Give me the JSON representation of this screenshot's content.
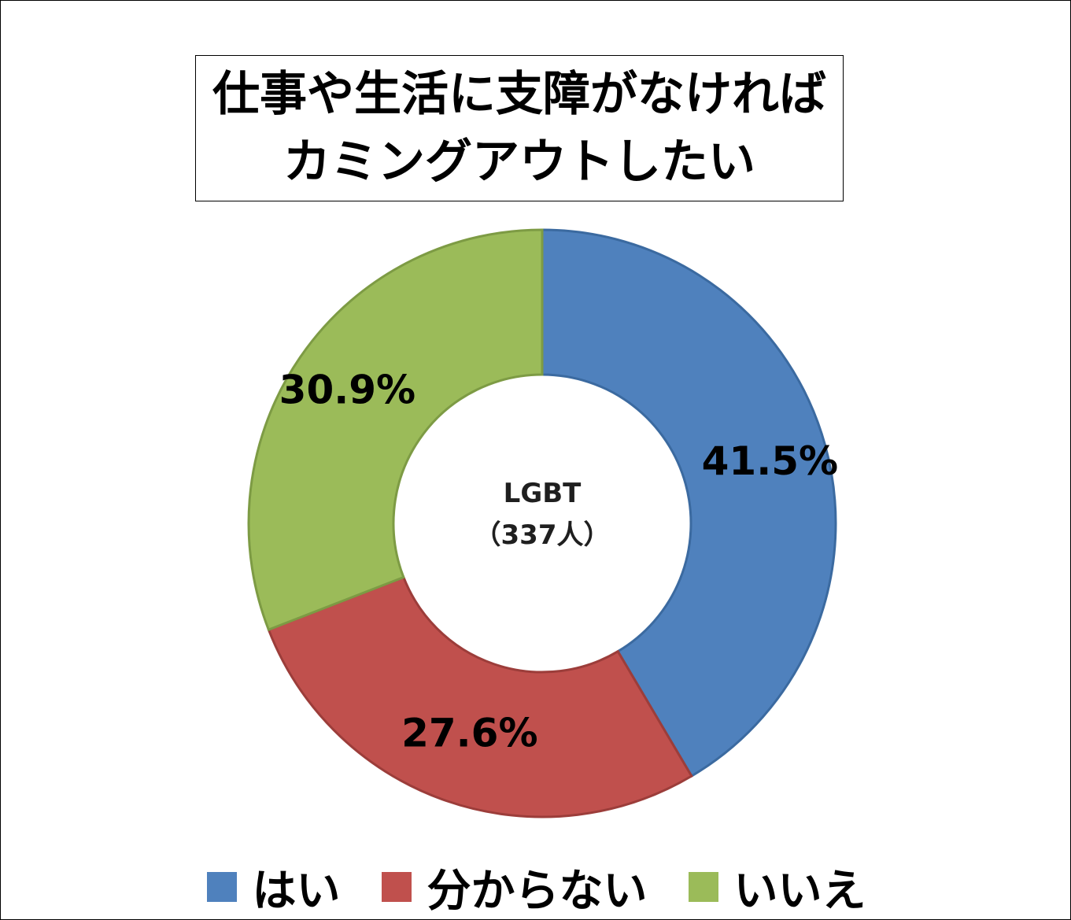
{
  "chart_data": {
    "type": "pie",
    "variant": "donut",
    "title": [
      "仕事や生活に支障がなければ",
      "カミングアウトしたい"
    ],
    "center_label": [
      "LGBT",
      "（337人）"
    ],
    "slices": [
      {
        "name": "はい",
        "value": 41.5,
        "label": "41.5%",
        "color": "#4f81bd",
        "stroke": "#3b6aa0"
      },
      {
        "name": "分からない",
        "value": 27.6,
        "label": "27.6%",
        "color": "#c0504d",
        "stroke": "#9c3d3a"
      },
      {
        "name": "いいえ",
        "value": 30.9,
        "label": "30.9%",
        "color": "#9bbb59",
        "stroke": "#7d9b44"
      }
    ],
    "start_angle_deg": 0,
    "direction": "clockwise",
    "legend_position": "bottom"
  }
}
